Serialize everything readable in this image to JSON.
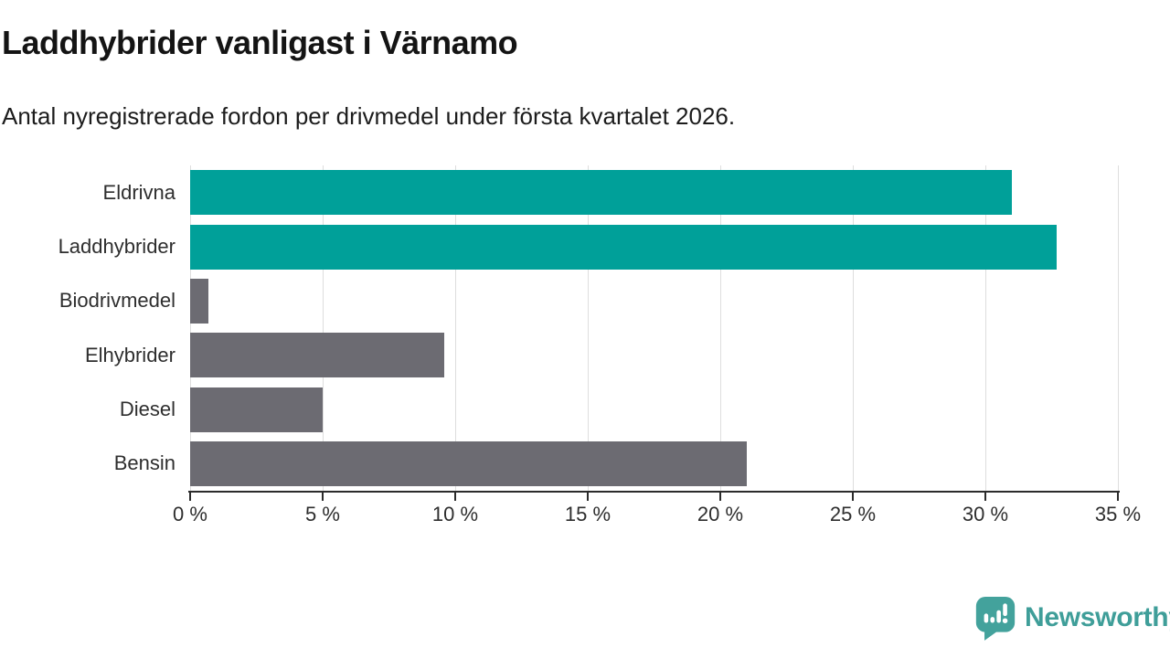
{
  "header": {
    "title": "Laddhybrider vanligast i Värnamo",
    "subtitle": "Antal nyregistrerade fordon per drivmedel under första kvartalet 2026."
  },
  "chart_data": {
    "type": "bar",
    "orientation": "horizontal",
    "title": "Laddhybrider vanligast i Värnamo",
    "subtitle": "Antal nyregistrerade fordon per drivmedel under första kvartalet 2026.",
    "categories": [
      "Eldrivna",
      "Laddhybrider",
      "Biodrivmedel",
      "Elhybrider",
      "Diesel",
      "Bensin"
    ],
    "values": [
      31.0,
      32.7,
      0.7,
      9.6,
      5.0,
      21.0
    ],
    "unit": "%",
    "bar_colors": [
      "#00a099",
      "#00a099",
      "#6c6b72",
      "#6c6b72",
      "#6c6b72",
      "#6c6b72"
    ],
    "highlight_color": "#00a099",
    "default_color": "#6c6b72",
    "xlim": [
      0,
      35
    ],
    "x_ticks": [
      0,
      5,
      10,
      15,
      20,
      25,
      30,
      35
    ],
    "x_tick_labels": [
      "0 %",
      "5 %",
      "10 %",
      "15 %",
      "20 %",
      "25 %",
      "30 %",
      "35 %"
    ],
    "grid": "vertical",
    "legend": "none",
    "xlabel": "",
    "ylabel": ""
  },
  "footer": {
    "brand": "Newsworthy",
    "brand_color": "#3f9e99"
  }
}
